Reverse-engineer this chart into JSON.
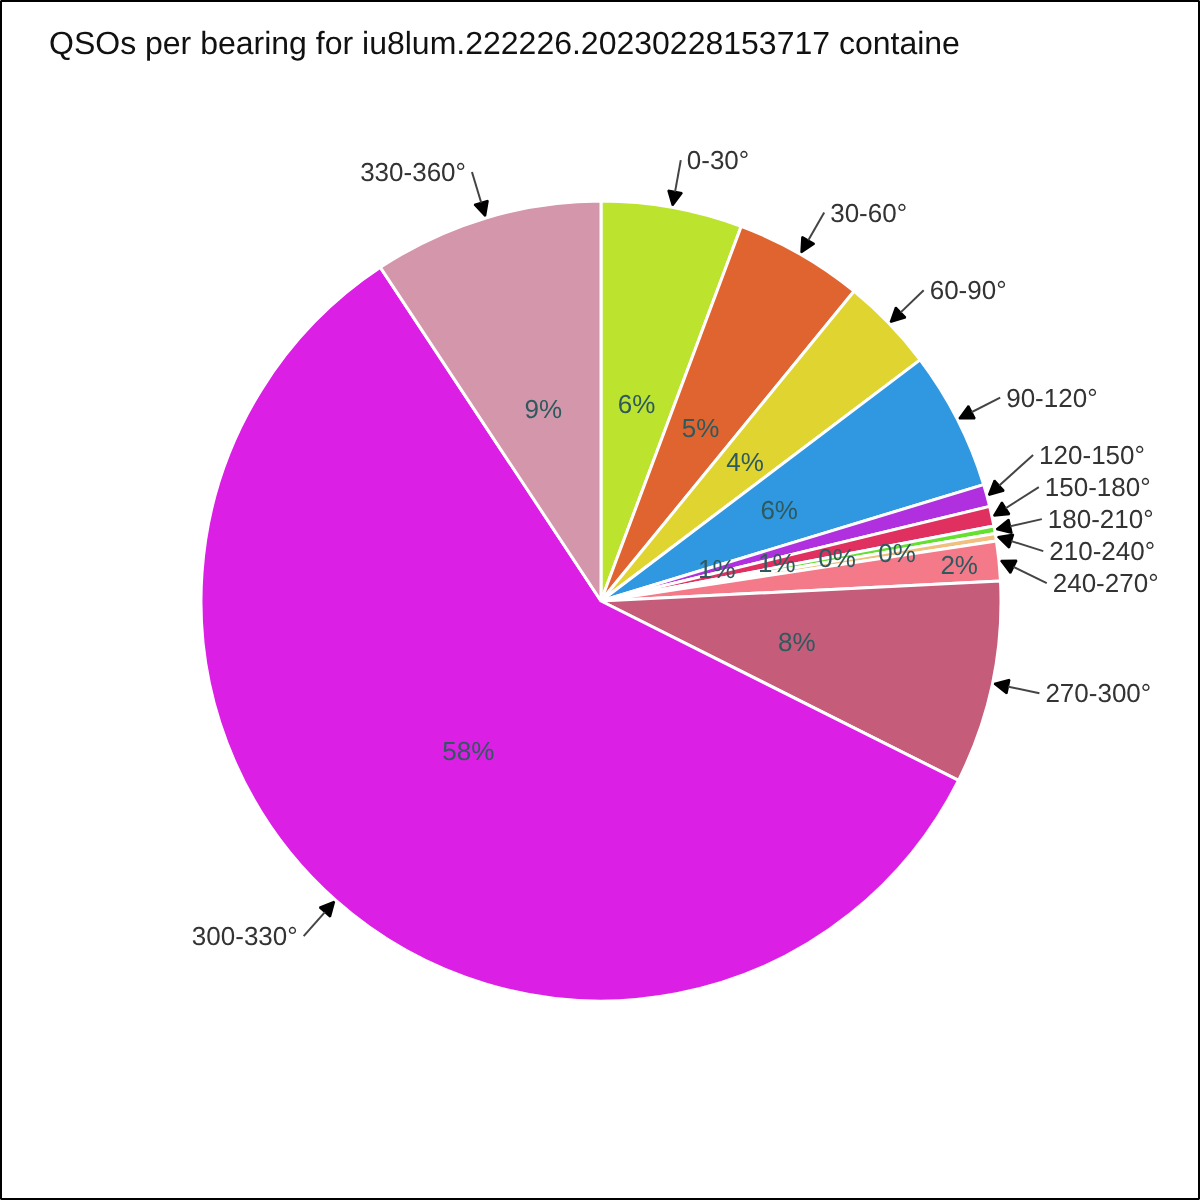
{
  "chart_data": {
    "type": "pie",
    "title": "QSOs per bearing for iu8lum.222226.20230228153717 containe",
    "categories": [
      "0-30°",
      "30-60°",
      "60-90°",
      "90-120°",
      "120-150°",
      "150-180°",
      "180-210°",
      "210-240°",
      "240-270°",
      "270-300°",
      "300-330°",
      "330-360°"
    ],
    "values": [
      5.7,
      5.2,
      3.8,
      5.6,
      0.9,
      0.8,
      0.3,
      0.3,
      1.6,
      8.2,
      58.3,
      9.3
    ],
    "colors": [
      "#bce32e",
      "#e06430",
      "#e0d530",
      "#3098e0",
      "#b030e0",
      "#e03060",
      "#64e030",
      "#f0c080",
      "#f47a8a",
      "#c55c7a",
      "#dc1fe4",
      "#d496aa"
    ],
    "value_labels": [
      "6%",
      "5%",
      "4%",
      "6%",
      "1%",
      "1%",
      "0%",
      "0%",
      "2%",
      "8%",
      "58%",
      "9%"
    ]
  }
}
